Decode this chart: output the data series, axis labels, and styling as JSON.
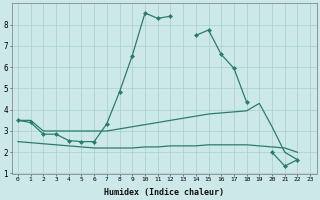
{
  "xlabel": "Humidex (Indice chaleur)",
  "x": [
    0,
    1,
    2,
    3,
    4,
    5,
    6,
    7,
    8,
    9,
    10,
    11,
    12,
    13,
    14,
    15,
    16,
    17,
    18,
    19,
    20,
    21,
    22,
    23
  ],
  "main_line": [
    3.5,
    3.4,
    2.85,
    2.85,
    2.55,
    2.5,
    2.5,
    3.35,
    4.85,
    6.55,
    8.55,
    8.3,
    8.4,
    null,
    7.5,
    7.75,
    6.6,
    5.95,
    4.35,
    null,
    2.0,
    1.35,
    1.65,
    null
  ],
  "rise_line": [
    3.5,
    3.5,
    3.0,
    3.0,
    3.0,
    3.0,
    3.0,
    3.0,
    3.1,
    3.2,
    3.3,
    3.4,
    3.5,
    3.6,
    3.7,
    3.8,
    3.85,
    3.9,
    3.95,
    4.3,
    3.2,
    2.0,
    1.65,
    null
  ],
  "flat_line": [
    2.5,
    2.45,
    2.4,
    2.35,
    2.3,
    2.25,
    2.2,
    2.2,
    2.2,
    2.2,
    2.25,
    2.25,
    2.3,
    2.3,
    2.3,
    2.35,
    2.35,
    2.35,
    2.35,
    2.3,
    2.25,
    2.2,
    2.0,
    null
  ],
  "color": "#2a7d6e",
  "bg_color": "#cce8e8",
  "grid_color": "#a8cece",
  "ylim": [
    1,
    9
  ],
  "xlim": [
    -0.5,
    23.5
  ],
  "yticks": [
    1,
    2,
    3,
    4,
    5,
    6,
    7,
    8
  ],
  "xticks": [
    0,
    1,
    2,
    3,
    4,
    5,
    6,
    7,
    8,
    9,
    10,
    11,
    12,
    13,
    14,
    15,
    16,
    17,
    18,
    19,
    20,
    21,
    22,
    23
  ]
}
